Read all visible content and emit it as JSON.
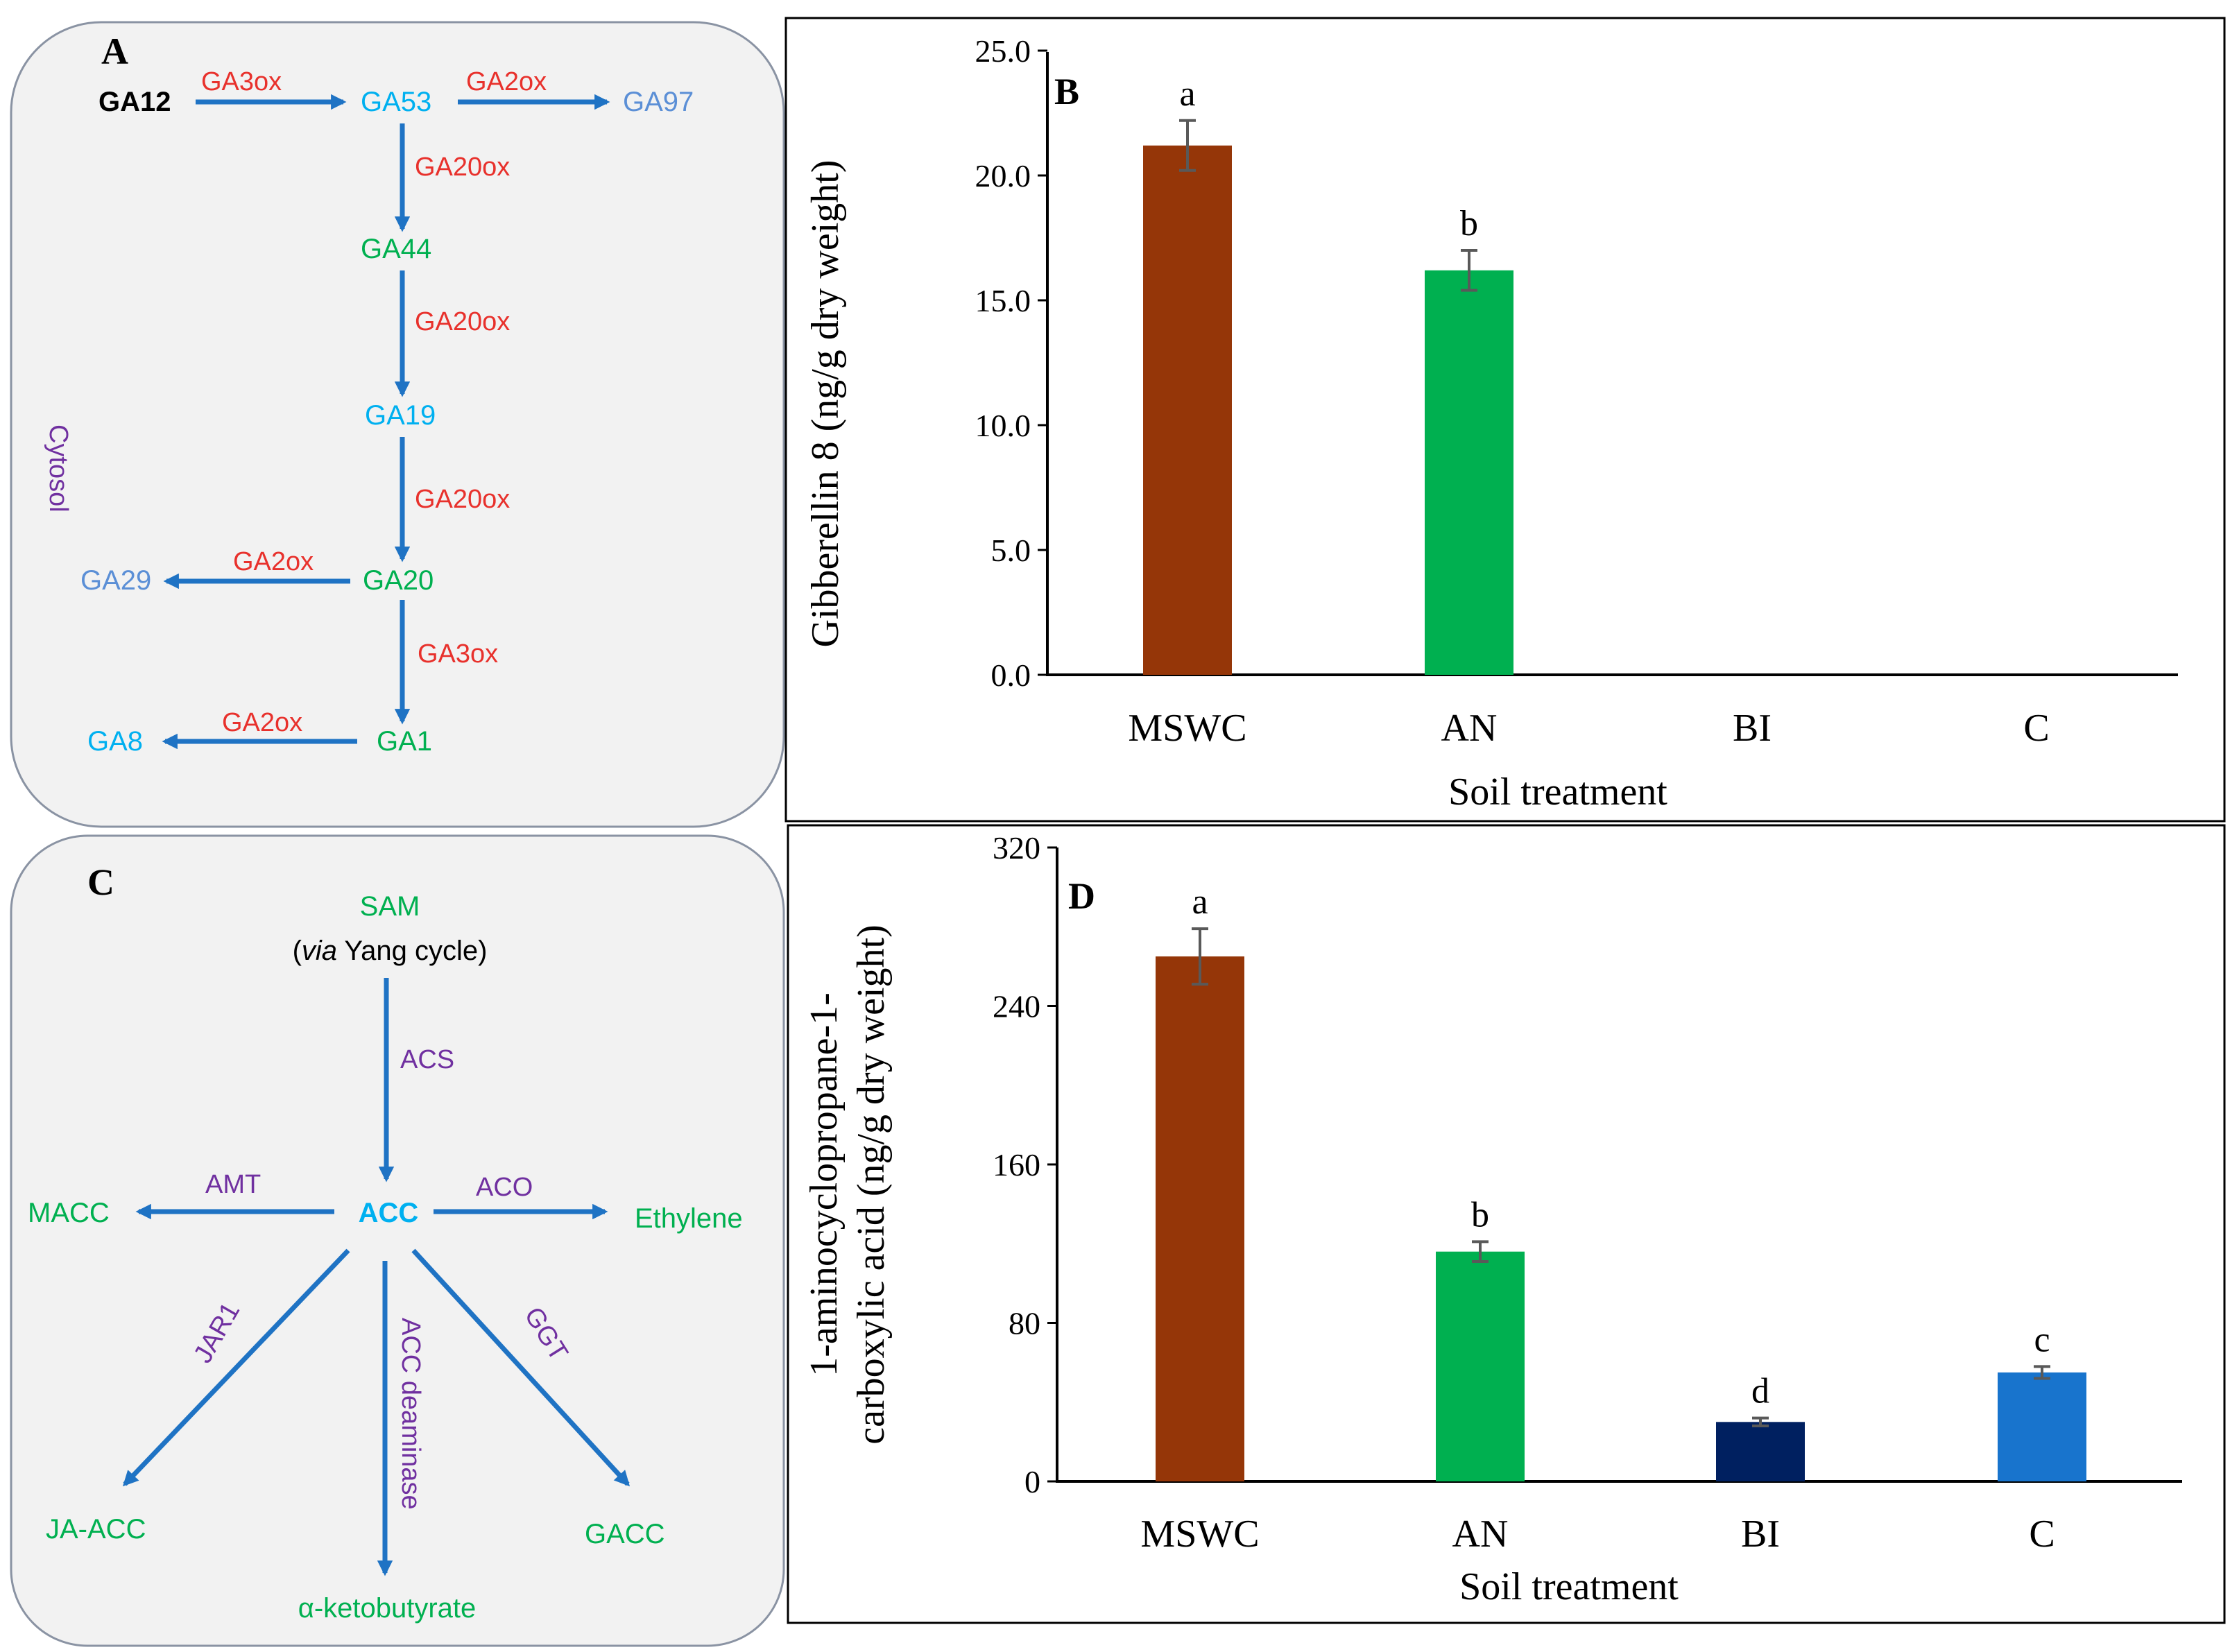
{
  "colors": {
    "arrow": "#1f73c4",
    "enzyme_red": "#e8312c",
    "enzyme_purple": "#7030a0",
    "node_green": "#00b050",
    "node_cyan": "#00b0f0",
    "node_blue": "#5b8fd6",
    "node_black": "#000000"
  },
  "panel_a": {
    "letter": "A",
    "compartment": "Cytosol",
    "nodes": [
      {
        "id": "GA12",
        "label": "GA12",
        "color": "node_black"
      },
      {
        "id": "GA53",
        "label": "GA53",
        "color": "node_cyan"
      },
      {
        "id": "GA97",
        "label": "GA97",
        "color": "node_blue"
      },
      {
        "id": "GA44",
        "label": "GA44",
        "color": "node_green"
      },
      {
        "id": "GA19",
        "label": "GA19",
        "color": "node_cyan"
      },
      {
        "id": "GA20",
        "label": "GA20",
        "color": "node_green"
      },
      {
        "id": "GA29",
        "label": "GA29",
        "color": "node_blue"
      },
      {
        "id": "GA1",
        "label": "GA1",
        "color": "node_green"
      },
      {
        "id": "GA8",
        "label": "GA8",
        "color": "node_cyan"
      }
    ],
    "enzymes": [
      "GA3ox",
      "GA2ox",
      "GA20ox",
      "GA20ox",
      "GA20ox",
      "GA2ox",
      "GA3ox",
      "GA2ox"
    ]
  },
  "panel_c": {
    "letter": "C",
    "sam_label": "SAM",
    "sam_note_prefix": "(",
    "sam_note_italic": "via",
    "sam_note_suffix": " Yang cycle)",
    "center": "ACC",
    "products": {
      "macc": "MACC",
      "ethylene": "Ethylene",
      "ja_acc": "JA-ACC",
      "ketobutyrate": "α-ketobutyrate",
      "gacc": "GACC"
    },
    "enzymes": {
      "acs": "ACS",
      "amt": "AMT",
      "aco": "ACO",
      "jar1": "JAR1",
      "deaminase": "ACC deaminase",
      "ggt": "GGT"
    }
  },
  "chart_data": [
    {
      "panel": "B",
      "type": "bar",
      "ylabel": "Gibberellin 8 (ng/g dry weight)",
      "xlabel": "Soil treatment",
      "categories": [
        "MSWC",
        "AN",
        "BI",
        "C"
      ],
      "values": [
        21.2,
        16.2,
        0,
        0
      ],
      "errors": [
        1.0,
        0.8,
        0,
        0
      ],
      "significance": [
        "a",
        "b",
        "",
        ""
      ],
      "bar_colors": [
        "#953608",
        "#00b050",
        "#002060",
        "#1874cd"
      ],
      "ylim": [
        0,
        25
      ],
      "yticks": [
        "0.0",
        "5.0",
        "10.0",
        "15.0",
        "20.0",
        "25.0"
      ],
      "tick_values": [
        0,
        5,
        10,
        15,
        20,
        25
      ],
      "grid": false
    },
    {
      "panel": "D",
      "type": "bar",
      "ylabel_line1": "1-aminocyclopropane-1-",
      "ylabel_line2": "carboxylic acid (ng/g dry weight)",
      "xlabel": "Soil treatment",
      "categories": [
        "MSWC",
        "AN",
        "BI",
        "C"
      ],
      "values": [
        265,
        116,
        30,
        55
      ],
      "errors": [
        14,
        5,
        2,
        3
      ],
      "significance": [
        "a",
        "b",
        "d",
        "c"
      ],
      "bar_colors": [
        "#953608",
        "#00b050",
        "#002060",
        "#1874cd"
      ],
      "ylim": [
        0,
        320
      ],
      "yticks": [
        "0",
        "80",
        "160",
        "240",
        "320"
      ],
      "tick_values": [
        0,
        80,
        160,
        240,
        320
      ],
      "grid": false
    }
  ]
}
